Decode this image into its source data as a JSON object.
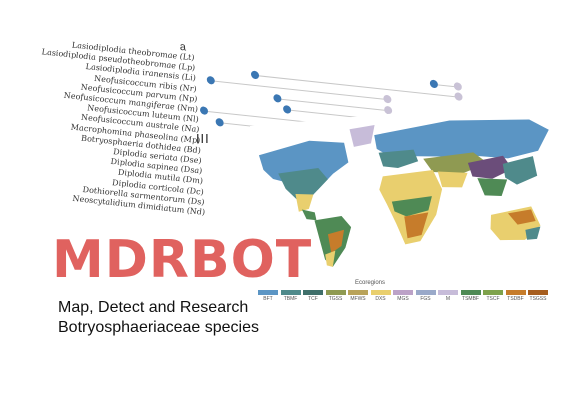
{
  "plot": {
    "panel_letter": "a",
    "roman": "III",
    "species": [
      {
        "name": "Lasiodiplodia theobromae (Lt)",
        "start": 0.78,
        "end": 0.86
      },
      {
        "name": "Lasiodiplodia pseudotheobromae (Lp)",
        "start": 0.18,
        "end": 0.86
      },
      {
        "name": "Lasiodiplodia iranensis (Li)",
        "start": 0.03,
        "end": 0.62
      },
      {
        "name": "Neofusicoccum ribis (Nr)",
        "start": 0.25,
        "end": 0.62
      },
      {
        "name": "Neofusicoccum parvum (Np)",
        "start": 0.28,
        "end": 0.62
      },
      {
        "name": "Neofusicoccum mangiferae (Nm)",
        "start": 0.0,
        "end": 0.62
      },
      {
        "name": "Neofusicoccum luteum (Nl)",
        "start": 0.05,
        "end": 0.62
      },
      {
        "name": "Neofusicoccum australe (Na)",
        "start": null,
        "end": null
      },
      {
        "name": "Macrophomina phaseolina (Mp)",
        "start": null,
        "end": null
      },
      {
        "name": "Botryosphaeria dothidea (Bd)",
        "start": null,
        "end": null
      },
      {
        "name": "Diplodia seriata (Dse)",
        "start": null,
        "end": null
      },
      {
        "name": "Diplodia sapinea (Dsa)",
        "start": null,
        "end": null
      },
      {
        "name": "Diplodia mutila (Dm)",
        "start": null,
        "end": null
      },
      {
        "name": "Diplodia corticola (Dc)",
        "start": null,
        "end": null
      },
      {
        "name": "Dothiorella sarmentorum (Ds)",
        "start": null,
        "end": null
      },
      {
        "name": "Neoscytalidium dimidiatum (Nd)",
        "start": null,
        "end": null
      }
    ],
    "colors": {
      "start": "#3b77b3",
      "end": "#c9c2d6"
    }
  },
  "map": {
    "legend_title": "Ecoregions",
    "ecoregions": [
      {
        "code": "BFT",
        "color": "#5b95c4"
      },
      {
        "code": "TBMF",
        "color": "#4f8a8b"
      },
      {
        "code": "TCF",
        "color": "#3f6f6a"
      },
      {
        "code": "TGSS",
        "color": "#8f9a52"
      },
      {
        "code": "MFWS",
        "color": "#b9a35a"
      },
      {
        "code": "DXS",
        "color": "#e9cf6e"
      },
      {
        "code": "MGS",
        "color": "#bca2c7"
      },
      {
        "code": "FGS",
        "color": "#9aa9c9"
      },
      {
        "code": "M",
        "color": "#c7bcd9"
      },
      {
        "code": "TSMBF",
        "color": "#4f8a55"
      },
      {
        "code": "TSCF",
        "color": "#7ea24b"
      },
      {
        "code": "TSDBF",
        "color": "#c67c2b"
      },
      {
        "code": "TSGSS",
        "color": "#a65d1e"
      }
    ]
  },
  "brand": {
    "title": "MDRBOT",
    "tagline_line1": "Map, Detect and Research",
    "tagline_line2": "Botryosphaeriaceae species",
    "color": "#e0625f"
  }
}
